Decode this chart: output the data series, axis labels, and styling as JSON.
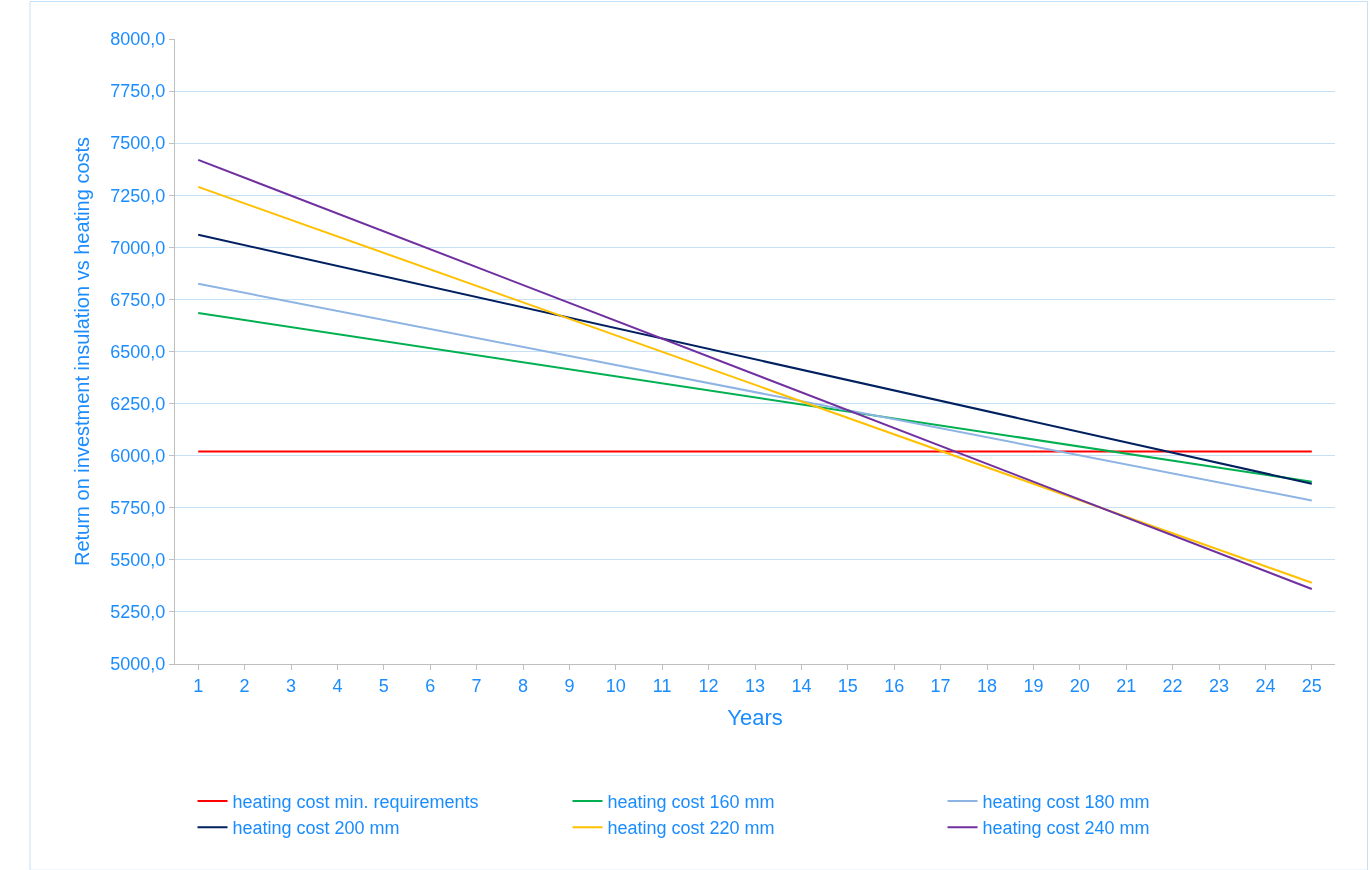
{
  "chart_data": {
    "type": "line",
    "xlabel": "Years",
    "ylabel": "Return on investment insulation vs heating costs",
    "x": [
      1,
      25
    ],
    "xlim": [
      0.5,
      25.5
    ],
    "xticks": [
      1,
      2,
      3,
      4,
      5,
      6,
      7,
      8,
      9,
      10,
      11,
      12,
      13,
      14,
      15,
      16,
      17,
      18,
      19,
      20,
      21,
      22,
      23,
      24,
      25
    ],
    "ylim": [
      5000,
      8000
    ],
    "yticks": [
      {
        "value": 5000,
        "label": "5000,0"
      },
      {
        "value": 5250,
        "label": "5250,0"
      },
      {
        "value": 5500,
        "label": "5500,0"
      },
      {
        "value": 5750,
        "label": "5750,0"
      },
      {
        "value": 6000,
        "label": "6000,0"
      },
      {
        "value": 6250,
        "label": "6250,0"
      },
      {
        "value": 6500,
        "label": "6500,0"
      },
      {
        "value": 6750,
        "label": "6750,0"
      },
      {
        "value": 7000,
        "label": "7000,0"
      },
      {
        "value": 7250,
        "label": "7250,0"
      },
      {
        "value": 7500,
        "label": "7500,0"
      },
      {
        "value": 7750,
        "label": "7750,0"
      },
      {
        "value": 8000,
        "label": "8000,0"
      }
    ],
    "grid": "y",
    "legend": "bottom",
    "marker": "none",
    "line_style": "solid",
    "series": [
      {
        "name": "heating cost min. requirements",
        "color": "#ff0000",
        "values": [
          6020,
          6020
        ]
      },
      {
        "name": "heating cost 160 mm",
        "color": "#00b050",
        "values": [
          6685,
          5875
        ]
      },
      {
        "name": "heating cost 180 mm",
        "color": "#8db4e2",
        "values": [
          6825,
          5785
        ]
      },
      {
        "name": "heating cost 200 mm",
        "color": "#002060",
        "values": [
          7060,
          5865
        ]
      },
      {
        "name": "heating cost 220 mm",
        "color": "#ffc000",
        "values": [
          7290,
          5390
        ]
      },
      {
        "name": "heating cost 240 mm",
        "color": "#7030a0",
        "values": [
          7420,
          5360
        ]
      }
    ]
  }
}
